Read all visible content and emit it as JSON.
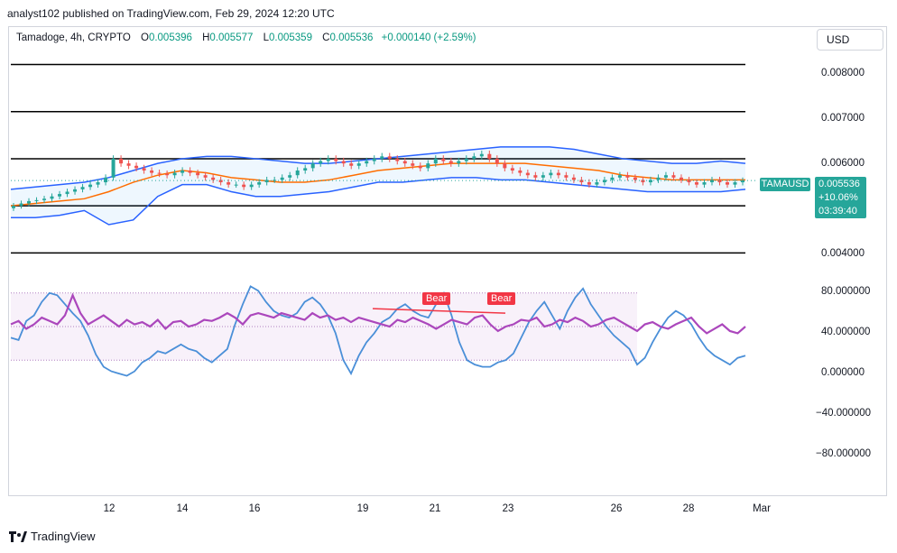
{
  "header": {
    "published_line": "analyst102 published on TradingView.com, Feb 29, 2024 12:20 UTC"
  },
  "legend": {
    "symbol": "Tamadoge, 4h, CRYPTO",
    "o_label": "O",
    "o_value": "0.005396",
    "h_label": "H",
    "h_value": "0.005577",
    "l_label": "L",
    "l_value": "0.005359",
    "c_label": "C",
    "c_value": "0.005536",
    "change": "+0.000140 (+2.59%)"
  },
  "currency_button": "USD",
  "price_axis": {
    "ticks": [
      "0.008000",
      "0.007000",
      "0.006000",
      "0.004000"
    ]
  },
  "rsi_axis": {
    "ticks": [
      "80.000000",
      "40.000000",
      "0.000000",
      "−40.000000",
      "−80.000000"
    ]
  },
  "x_axis": {
    "ticks": [
      "12",
      "14",
      "16",
      "19",
      "21",
      "23",
      "26",
      "28",
      "Mar"
    ]
  },
  "last_price": {
    "ticker": "TAMAUSD",
    "price": "0.005536",
    "change_pct": "+10.06%",
    "countdown": "03:39:40"
  },
  "signals": [
    "Bear",
    "Bear"
  ],
  "footer": {
    "brand": "TradingView"
  },
  "colors": {
    "up": "#26a69a",
    "down": "#ef5350",
    "bollinger": "#2962ff",
    "middle_band": "#ff6d00",
    "rsi": "#ab47bc",
    "stoch_k": "#4a8fd8",
    "bear": "#f23645"
  },
  "chart_data": [
    {
      "type": "candlestick",
      "title": "Tamadoge, 4h, CRYPTO",
      "ylim": [
        0.0037,
        0.0087
      ],
      "horizontal_levels": [
        0.008,
        0.007,
        0.006,
        0.005,
        0.004
      ],
      "last_close": 0.005536,
      "candles_close": [
        0.005,
        0.00505,
        0.0051,
        0.00512,
        0.00515,
        0.0052,
        0.00525,
        0.0053,
        0.00535,
        0.0054,
        0.00545,
        0.0055,
        0.0056,
        0.006,
        0.0059,
        0.00585,
        0.0058,
        0.00575,
        0.0057,
        0.00568,
        0.00565,
        0.0057,
        0.00575,
        0.0057,
        0.00565,
        0.0056,
        0.00555,
        0.0055,
        0.00545,
        0.00545,
        0.0054,
        0.00545,
        0.0055,
        0.00555,
        0.00555,
        0.0056,
        0.00565,
        0.00575,
        0.0058,
        0.0059,
        0.00595,
        0.006,
        0.00595,
        0.0059,
        0.00585,
        0.0059,
        0.00595,
        0.006,
        0.00605,
        0.006,
        0.00595,
        0.0059,
        0.00585,
        0.0058,
        0.0059,
        0.006,
        0.00595,
        0.0059,
        0.00595,
        0.006,
        0.00605,
        0.0061,
        0.006,
        0.0059,
        0.0058,
        0.00575,
        0.0057,
        0.00565,
        0.0056,
        0.00565,
        0.0057,
        0.00565,
        0.0056,
        0.00555,
        0.0055,
        0.00545,
        0.0055,
        0.00555,
        0.0056,
        0.00565,
        0.0056,
        0.00555,
        0.0055,
        0.00555,
        0.0056,
        0.00565,
        0.0056,
        0.00555,
        0.0055,
        0.00545,
        0.0055,
        0.00555,
        0.0055,
        0.00545,
        0.0055,
        0.005536
      ],
      "bollinger_upper": [
        0.00535,
        0.0054,
        0.00545,
        0.0055,
        0.0056,
        0.00575,
        0.0059,
        0.006,
        0.00605,
        0.00605,
        0.006,
        0.00595,
        0.0059,
        0.0059,
        0.00595,
        0.006,
        0.00605,
        0.0061,
        0.00615,
        0.0062,
        0.00625,
        0.00625,
        0.00625,
        0.0062,
        0.0061,
        0.006,
        0.00595,
        0.0059,
        0.0059,
        0.00595,
        0.0059
      ],
      "bollinger_middle": [
        0.005,
        0.00505,
        0.0051,
        0.00515,
        0.0053,
        0.0055,
        0.00565,
        0.00575,
        0.0057,
        0.0056,
        0.00555,
        0.0055,
        0.0055,
        0.00555,
        0.00565,
        0.00575,
        0.0058,
        0.00585,
        0.0059,
        0.0059,
        0.0059,
        0.0059,
        0.00585,
        0.0058,
        0.00575,
        0.00565,
        0.0056,
        0.00555,
        0.00555,
        0.00555,
        0.00555
      ],
      "bollinger_lower": [
        0.00475,
        0.00475,
        0.0048,
        0.0049,
        0.0046,
        0.0047,
        0.0052,
        0.00545,
        0.00545,
        0.0053,
        0.0052,
        0.0052,
        0.00525,
        0.0053,
        0.0054,
        0.0055,
        0.0055,
        0.00555,
        0.0056,
        0.0056,
        0.00555,
        0.00555,
        0.0055,
        0.00545,
        0.0054,
        0.00535,
        0.0053,
        0.0053,
        0.0053,
        0.0053,
        0.00535
      ]
    },
    {
      "type": "line",
      "title": "",
      "ylim": [
        -100,
        100
      ],
      "bands": [
        80,
        20
      ],
      "series": [
        {
          "values": [
            52,
            55,
            48,
            52,
            58,
            55,
            52,
            60,
            78,
            62,
            52,
            56,
            60,
            55,
            50,
            56,
            52,
            54,
            50,
            56,
            48,
            54,
            55,
            50,
            52,
            56,
            55,
            58,
            62,
            58,
            52,
            60,
            62,
            60,
            58,
            62,
            60,
            58,
            56,
            62,
            58,
            60,
            56,
            58,
            54,
            58,
            56,
            54,
            52,
            50,
            56,
            54,
            58,
            55,
            52,
            48,
            52,
            56,
            54,
            52,
            58,
            60,
            52,
            46,
            50,
            52,
            56,
            55,
            58,
            50,
            52,
            56,
            54,
            58,
            55,
            50,
            52,
            56,
            58,
            54,
            50,
            46,
            52,
            54,
            50,
            48,
            52,
            55,
            58,
            50,
            44,
            48,
            52,
            46,
            44,
            50
          ]
        },
        {
          "values": [
            40,
            38,
            55,
            60,
            72,
            80,
            78,
            70,
            62,
            55,
            42,
            25,
            14,
            10,
            8,
            6,
            10,
            18,
            22,
            28,
            26,
            30,
            34,
            30,
            28,
            22,
            18,
            24,
            30,
            52,
            70,
            86,
            82,
            72,
            64,
            60,
            58,
            62,
            72,
            76,
            70,
            60,
            44,
            20,
            8,
            24,
            36,
            44,
            54,
            58,
            66,
            70,
            64,
            60,
            58,
            70,
            80,
            60,
            36,
            20,
            16,
            14,
            14,
            18,
            20,
            26,
            40,
            54,
            64,
            72,
            60,
            48,
            64,
            76,
            84,
            70,
            60,
            50,
            42,
            36,
            30,
            16,
            22,
            36,
            48,
            58,
            64,
            60,
            52,
            40,
            30,
            24,
            20,
            16,
            22,
            24
          ]
        }
      ]
    }
  ]
}
